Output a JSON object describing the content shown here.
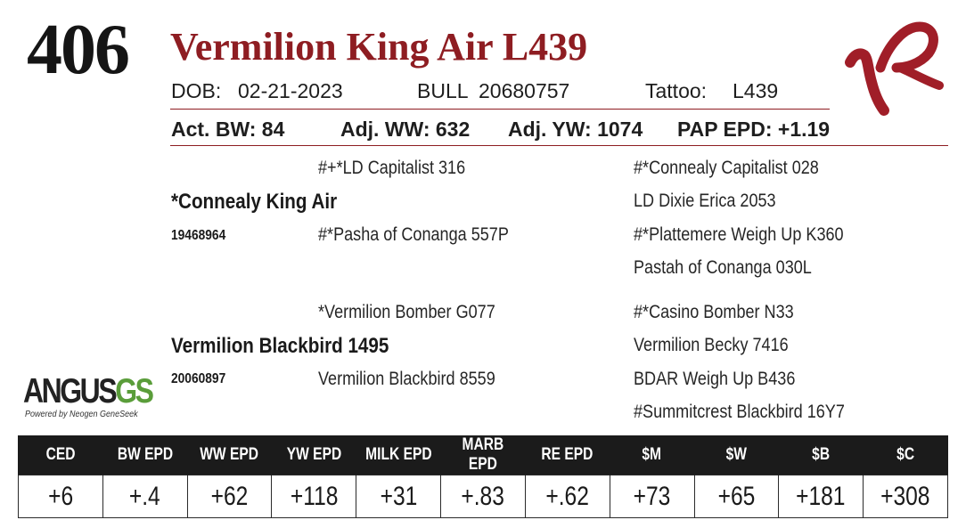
{
  "lot_number": "406",
  "animal_name": "Vermilion King Air L439",
  "info_row1": {
    "dob_label": "DOB:",
    "dob_value": "02-21-2023",
    "sex_label": "BULL",
    "registration": "20680757",
    "tattoo_label": "Tattoo:",
    "tattoo_value": "L439"
  },
  "info_row2": {
    "act_bw": "Act. BW: 84",
    "adj_ww": "Adj. WW: 632",
    "adj_yw": "Adj. YW: 1074",
    "pap_epd": "PAP EPD: +1.19"
  },
  "pedigree": {
    "sire": "*Connealy King Air",
    "sire_reg": "19468964",
    "sire_sire": "#+*LD Capitalist 316",
    "sire_dam": "#*Pasha of Conanga 557P",
    "sire_sire_sire": "#*Connealy Capitalist 028",
    "sire_sire_dam": "LD Dixie Erica 2053",
    "sire_dam_sire": "#*Plattemere Weigh Up K360",
    "sire_dam_dam": "Pastah of Conanga 030L",
    "dam": "Vermilion Blackbird 1495",
    "dam_reg": "20060897",
    "dam_sire": "*Vermilion Bomber G077",
    "dam_dam": "Vermilion Blackbird 8559",
    "dam_sire_sire": "#*Casino Bomber N33",
    "dam_sire_dam": "Vermilion Becky 7416",
    "dam_dam_sire": "BDAR Weigh Up B436",
    "dam_dam_dam": "#Summitcrest Blackbird 16Y7"
  },
  "angus_logo": {
    "word": "ANGUS",
    "suffix": "GS",
    "tagline": "Powered by Neogen GeneSeek"
  },
  "brand_logo_color": "#a01e28",
  "accent_color": "#8e1d22",
  "epd_headers": [
    "CED",
    "BW EPD",
    "WW EPD",
    "YW EPD",
    "MILK EPD",
    "MARB EPD",
    "RE EPD",
    "$M",
    "$W",
    "$B",
    "$C"
  ],
  "epd_values": [
    "+6",
    "+.4",
    "+62",
    "+118",
    "+31",
    "+.83",
    "+.62",
    "+73",
    "+65",
    "+181",
    "+308"
  ]
}
